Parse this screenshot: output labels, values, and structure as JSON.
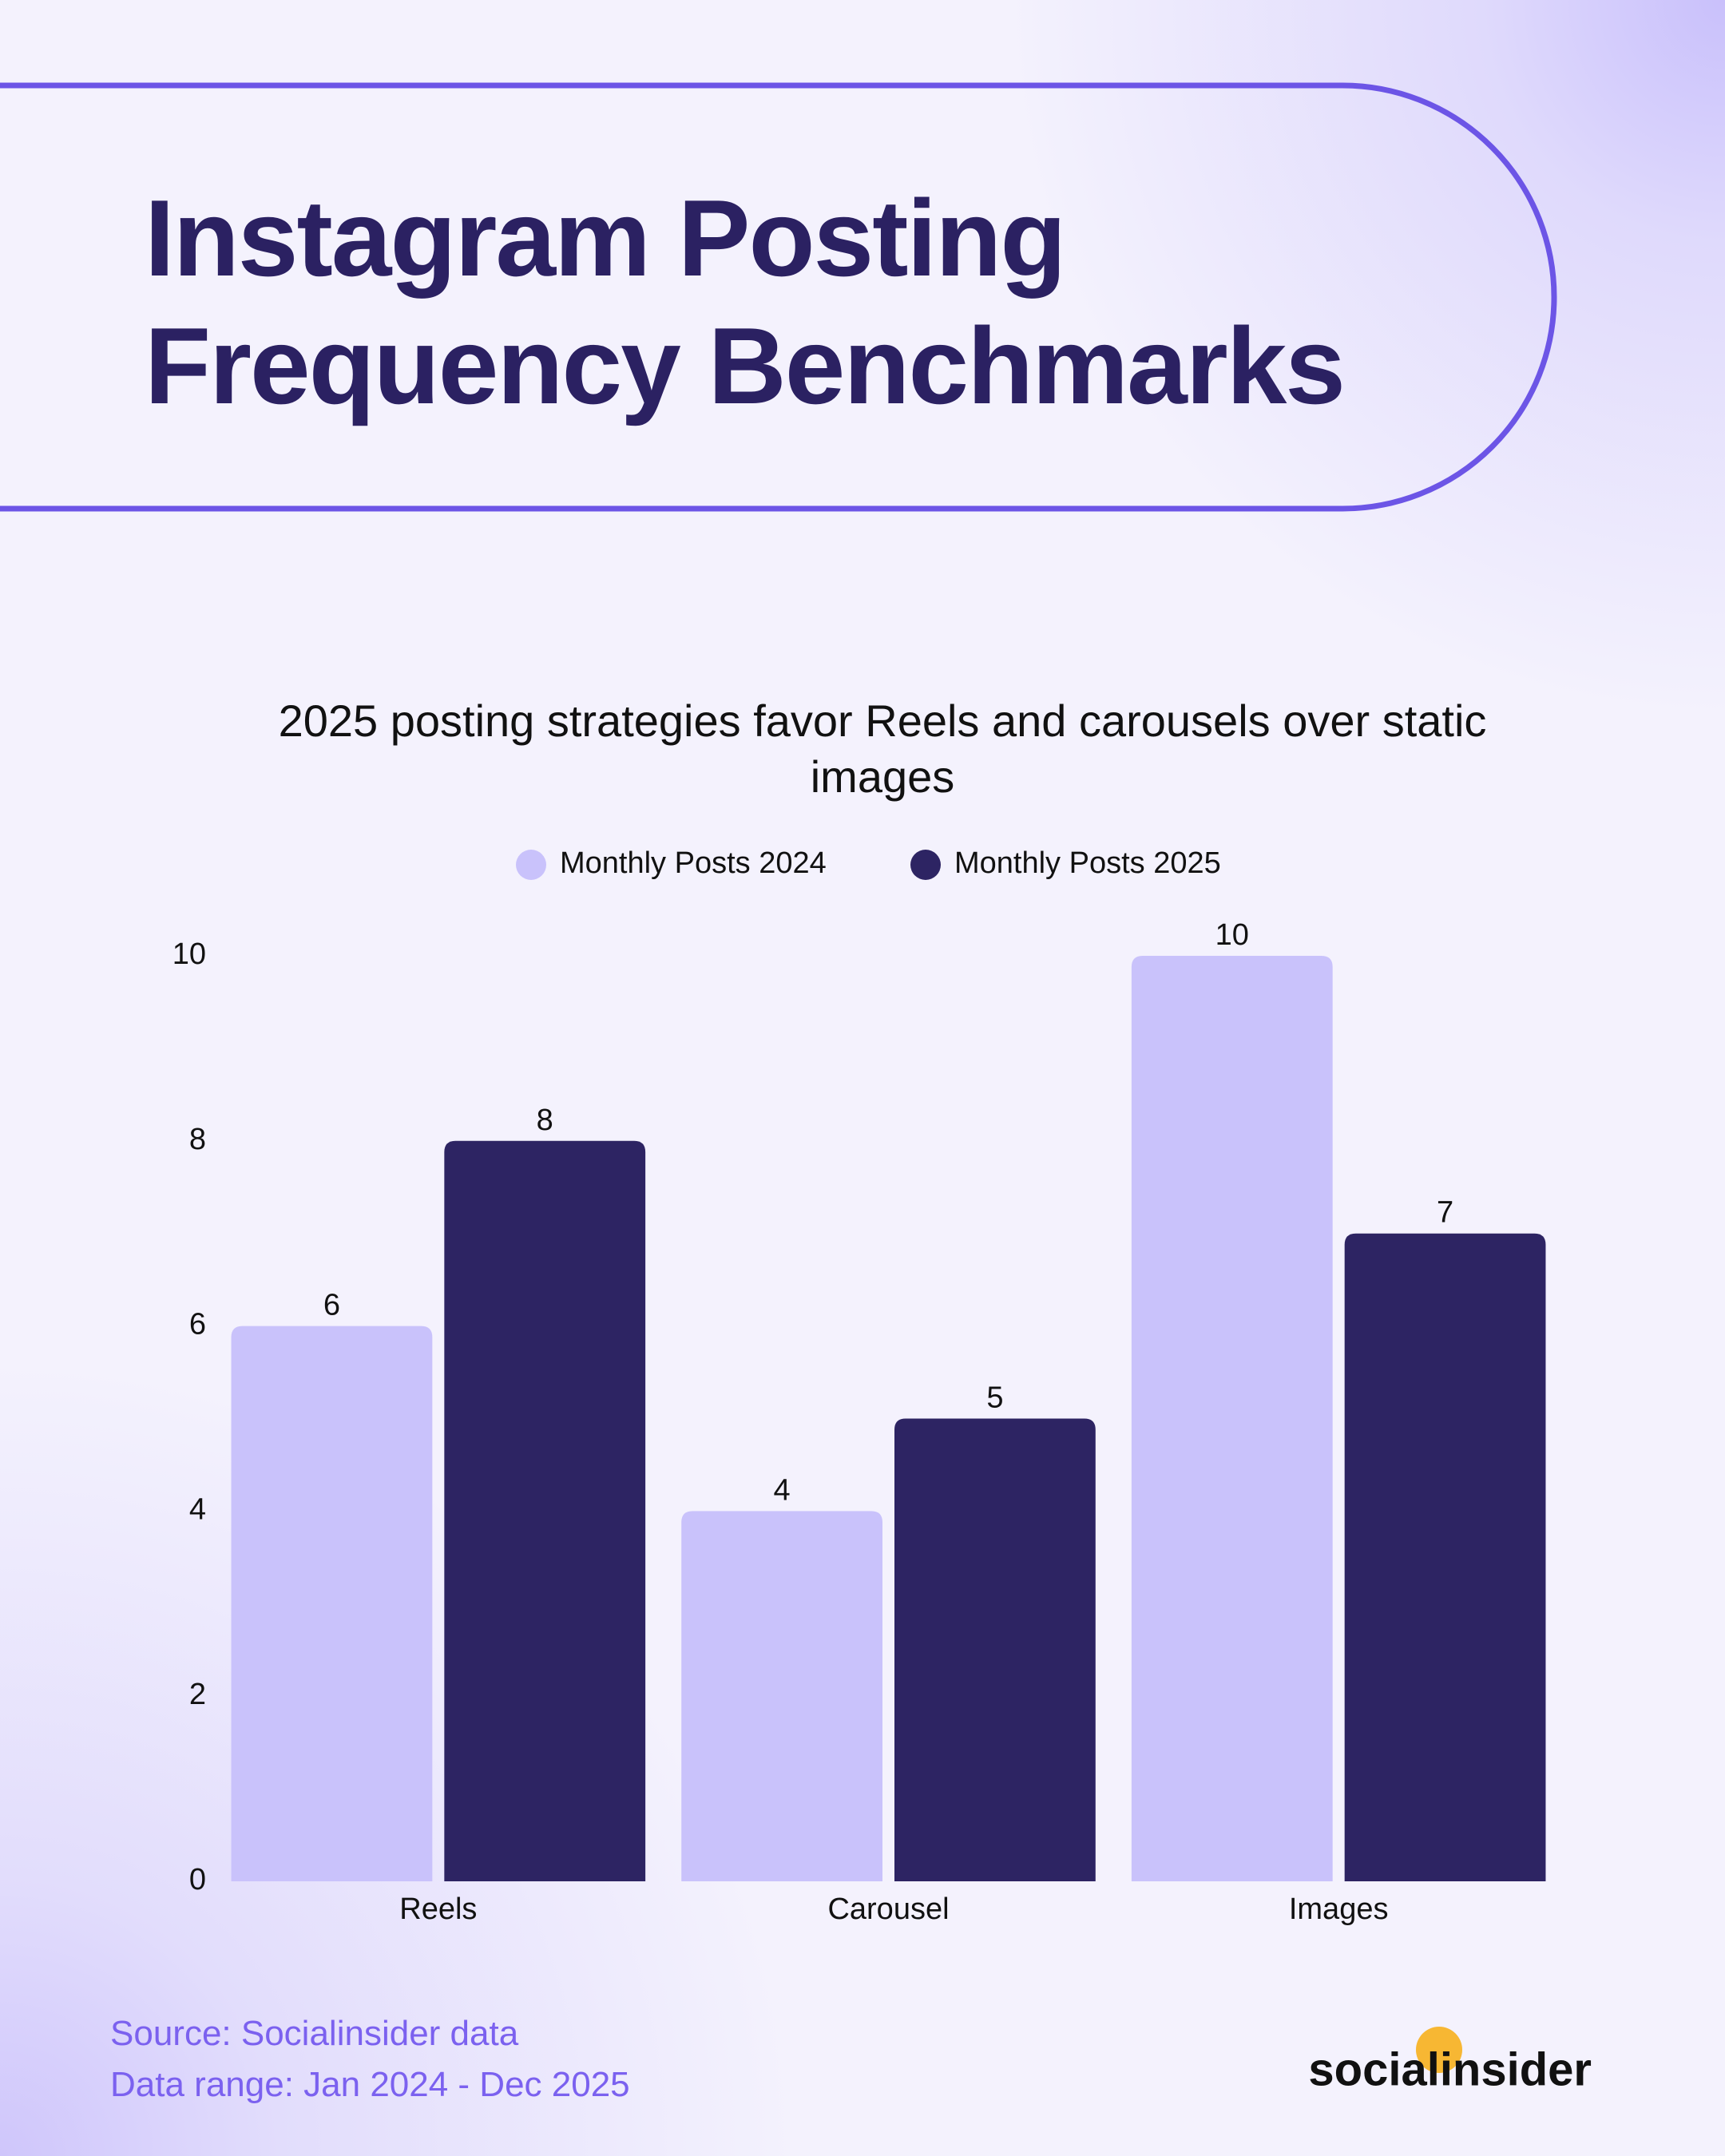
{
  "header": {
    "title": "Instagram Posting Frequency Benchmarks"
  },
  "chart_data": {
    "type": "bar",
    "title": "2025 posting strategies favor Reels and carousels over static images",
    "categories": [
      "Reels",
      "Carousel",
      "Images"
    ],
    "series": [
      {
        "name": "Monthly Posts 2024",
        "color": "#c9c2fb",
        "values": [
          6,
          4,
          10
        ]
      },
      {
        "name": "Monthly Posts 2025",
        "color": "#2d2463",
        "values": [
          8,
          5,
          7
        ]
      }
    ],
    "ylim": [
      0,
      10
    ],
    "yticks": [
      0,
      2,
      4,
      6,
      8,
      10
    ],
    "grid": false,
    "legend": "top"
  },
  "footer": {
    "source": "Source: Socialinsider data",
    "data_range": "Data range: Jan 2024 - Dec 2025",
    "logo": "socialinsider"
  }
}
